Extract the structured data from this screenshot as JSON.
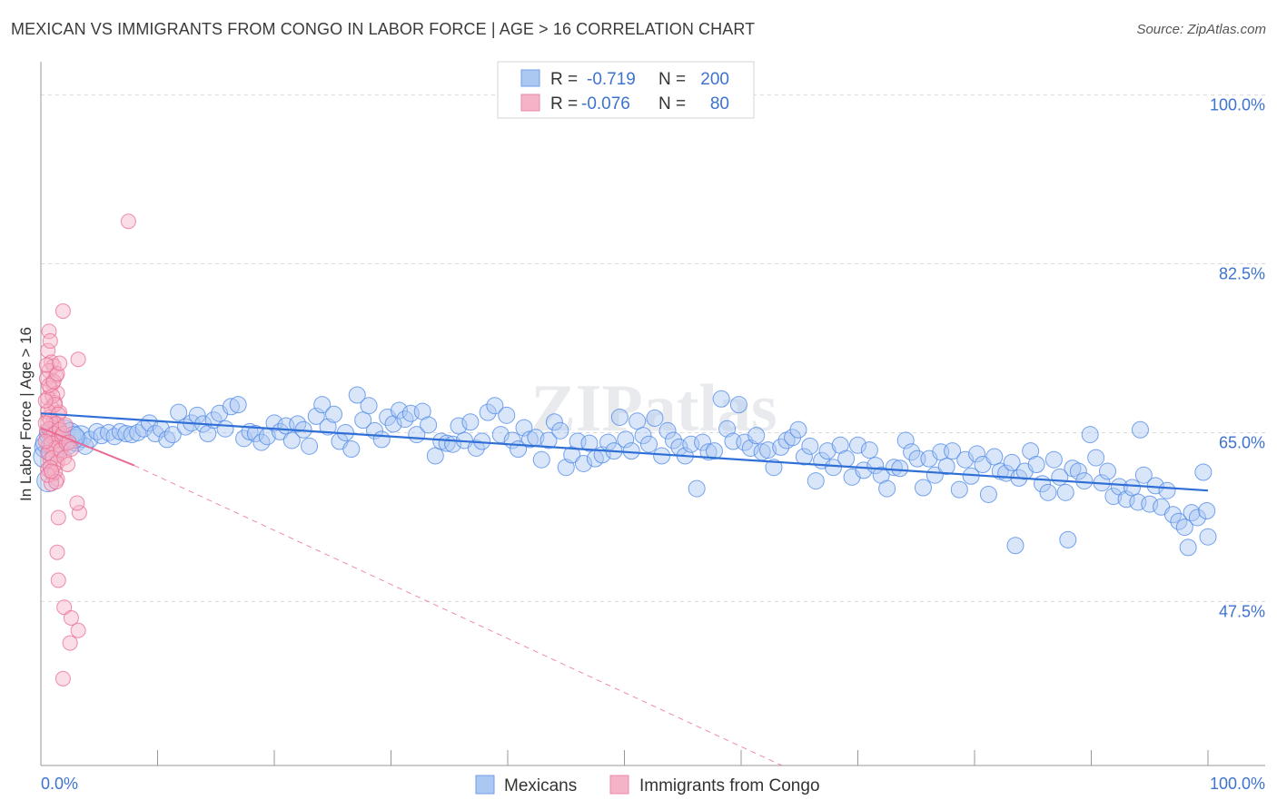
{
  "header": {
    "title": "MEXICAN VS IMMIGRANTS FROM CONGO IN LABOR FORCE | AGE > 16 CORRELATION CHART",
    "source": "Source: ZipAtlas.com"
  },
  "colors": {
    "blue": "#4a86e8",
    "blue_fill": "#aac8f2",
    "blue_line": "#2f6fd6",
    "pink": "#ea6a92",
    "pink_fill": "#f5b3c8",
    "grid": "#d9d9d9",
    "tick_text": "#3d73cf"
  },
  "chart_data": {
    "type": "scatter",
    "title": "MEXICAN VS IMMIGRANTS FROM CONGO IN LABOR FORCE | AGE > 16 CORRELATION CHART",
    "xlabel": "",
    "ylabel": "In Labor Force | Age > 16",
    "xlim": [
      0,
      100
    ],
    "ylim": [
      30.5,
      102.5
    ],
    "y_ticks": [
      47.5,
      65.0,
      82.5,
      100.0
    ],
    "y_tick_labels": [
      "47.5%",
      "65.0%",
      "82.5%",
      "100.0%"
    ],
    "x_tick_labels": [
      "0.0%",
      "100.0%"
    ],
    "watermark": "ZIPatlas",
    "legend_top": [
      {
        "r_label": "R =",
        "r_value": "-0.719",
        "n_label": "N =",
        "n_value": "200"
      },
      {
        "r_label": "R =",
        "r_value": "-0.076",
        "n_label": "N =",
        "n_value": "80"
      }
    ],
    "legend_bottom": [
      "Mexicans",
      "Immigrants from Congo"
    ],
    "series": [
      {
        "name": "Mexicans",
        "trend": {
          "x": [
            0,
            100
          ],
          "y": [
            67.0,
            59.0
          ],
          "style": "solid"
        },
        "points": [
          [
            0.4,
            63.5
          ],
          [
            0.8,
            64.8
          ],
          [
            1.2,
            65.0
          ],
          [
            1.5,
            64.5
          ],
          [
            2.0,
            65.2
          ],
          [
            2.2,
            63.8
          ],
          [
            2.5,
            64.9
          ],
          [
            3.0,
            64.2
          ],
          [
            3.4,
            64.6
          ],
          [
            3.8,
            63.6
          ],
          [
            4.2,
            64.3
          ],
          [
            4.8,
            65.1
          ],
          [
            5.2,
            64.7
          ],
          [
            5.8,
            65.0
          ],
          [
            6.3,
            64.6
          ],
          [
            6.8,
            65.1
          ],
          [
            7.3,
            64.9
          ],
          [
            7.8,
            64.8
          ],
          [
            8.3,
            65.0
          ],
          [
            8.8,
            65.4
          ],
          [
            9.3,
            66.0
          ],
          [
            9.8,
            64.9
          ],
          [
            10.3,
            65.4
          ],
          [
            10.8,
            64.3
          ],
          [
            11.3,
            64.8
          ],
          [
            11.8,
            67.1
          ],
          [
            12.4,
            65.6
          ],
          [
            12.9,
            66.0
          ],
          [
            13.4,
            66.8
          ],
          [
            13.9,
            65.9
          ],
          [
            14.3,
            64.9
          ],
          [
            14.8,
            66.3
          ],
          [
            15.3,
            67.0
          ],
          [
            15.8,
            65.4
          ],
          [
            16.3,
            67.7
          ],
          [
            16.9,
            67.9
          ],
          [
            17.4,
            64.4
          ],
          [
            17.9,
            65.1
          ],
          [
            18.4,
            64.9
          ],
          [
            18.9,
            64.0
          ],
          [
            19.4,
            64.6
          ],
          [
            20.0,
            66.0
          ],
          [
            20.5,
            65.1
          ],
          [
            21.0,
            65.7
          ],
          [
            21.5,
            64.2
          ],
          [
            22.0,
            65.9
          ],
          [
            22.5,
            65.3
          ],
          [
            23.0,
            63.6
          ],
          [
            23.6,
            66.7
          ],
          [
            24.1,
            67.9
          ],
          [
            24.6,
            65.6
          ],
          [
            25.1,
            66.9
          ],
          [
            25.6,
            64.1
          ],
          [
            26.1,
            65.0
          ],
          [
            26.6,
            63.3
          ],
          [
            27.1,
            68.9
          ],
          [
            27.6,
            66.3
          ],
          [
            28.1,
            67.8
          ],
          [
            28.6,
            65.2
          ],
          [
            29.2,
            64.3
          ],
          [
            29.7,
            66.6
          ],
          [
            30.2,
            65.9
          ],
          [
            30.7,
            67.3
          ],
          [
            31.2,
            66.4
          ],
          [
            31.7,
            67.0
          ],
          [
            32.2,
            64.8
          ],
          [
            32.7,
            67.2
          ],
          [
            33.2,
            65.8
          ],
          [
            33.8,
            62.6
          ],
          [
            34.3,
            64.1
          ],
          [
            34.8,
            63.9
          ],
          [
            35.3,
            63.8
          ],
          [
            35.8,
            65.7
          ],
          [
            36.3,
            64.2
          ],
          [
            36.8,
            66.1
          ],
          [
            37.3,
            63.4
          ],
          [
            37.8,
            64.1
          ],
          [
            38.3,
            67.1
          ],
          [
            38.9,
            67.8
          ],
          [
            39.4,
            64.8
          ],
          [
            39.9,
            66.8
          ],
          [
            40.4,
            64.2
          ],
          [
            40.9,
            63.3
          ],
          [
            41.4,
            65.5
          ],
          [
            41.9,
            64.3
          ],
          [
            42.4,
            64.5
          ],
          [
            42.9,
            62.2
          ],
          [
            43.5,
            64.2
          ],
          [
            44.0,
            66.1
          ],
          [
            44.5,
            65.2
          ],
          [
            45.0,
            61.4
          ],
          [
            45.5,
            62.7
          ],
          [
            46.0,
            64.1
          ],
          [
            46.5,
            61.8
          ],
          [
            47.0,
            63.9
          ],
          [
            47.5,
            62.3
          ],
          [
            48.1,
            62.7
          ],
          [
            48.6,
            64.0
          ],
          [
            49.1,
            63.1
          ],
          [
            49.6,
            66.6
          ],
          [
            50.1,
            64.3
          ],
          [
            50.6,
            63.1
          ],
          [
            51.1,
            66.2
          ],
          [
            51.6,
            64.7
          ],
          [
            52.1,
            63.8
          ],
          [
            52.6,
            66.5
          ],
          [
            53.2,
            62.6
          ],
          [
            53.7,
            65.2
          ],
          [
            54.2,
            64.2
          ],
          [
            54.7,
            63.5
          ],
          [
            55.2,
            62.6
          ],
          [
            55.7,
            63.8
          ],
          [
            56.2,
            59.2
          ],
          [
            56.7,
            64.0
          ],
          [
            57.2,
            63.0
          ],
          [
            57.7,
            63.1
          ],
          [
            58.3,
            68.5
          ],
          [
            58.8,
            65.4
          ],
          [
            59.3,
            64.1
          ],
          [
            59.8,
            67.9
          ],
          [
            60.3,
            64.0
          ],
          [
            60.8,
            63.4
          ],
          [
            61.3,
            64.7
          ],
          [
            61.8,
            63.0
          ],
          [
            62.3,
            63.2
          ],
          [
            62.8,
            61.4
          ],
          [
            63.4,
            63.5
          ],
          [
            63.9,
            64.2
          ],
          [
            64.4,
            64.5
          ],
          [
            64.9,
            65.3
          ],
          [
            65.4,
            62.5
          ],
          [
            65.9,
            63.6
          ],
          [
            66.4,
            60.0
          ],
          [
            66.9,
            62.1
          ],
          [
            67.4,
            63.1
          ],
          [
            67.9,
            61.4
          ],
          [
            68.5,
            63.7
          ],
          [
            69.0,
            62.3
          ],
          [
            69.5,
            60.4
          ],
          [
            70.0,
            63.7
          ],
          [
            70.5,
            61.1
          ],
          [
            71.0,
            63.2
          ],
          [
            71.5,
            61.6
          ],
          [
            72.0,
            60.6
          ],
          [
            72.5,
            59.2
          ],
          [
            73.1,
            61.4
          ],
          [
            73.6,
            61.3
          ],
          [
            74.1,
            64.2
          ],
          [
            74.6,
            63.0
          ],
          [
            75.1,
            62.3
          ],
          [
            75.6,
            59.3
          ],
          [
            76.1,
            62.3
          ],
          [
            76.6,
            60.6
          ],
          [
            77.1,
            63.0
          ],
          [
            77.6,
            61.5
          ],
          [
            78.1,
            63.1
          ],
          [
            78.7,
            59.1
          ],
          [
            79.2,
            62.2
          ],
          [
            79.7,
            60.5
          ],
          [
            80.2,
            62.8
          ],
          [
            80.7,
            61.7
          ],
          [
            81.2,
            58.6
          ],
          [
            81.7,
            62.5
          ],
          [
            82.2,
            61.0
          ],
          [
            82.7,
            60.8
          ],
          [
            83.2,
            61.9
          ],
          [
            83.8,
            60.3
          ],
          [
            84.3,
            61.0
          ],
          [
            84.8,
            63.1
          ],
          [
            85.3,
            61.7
          ],
          [
            85.8,
            59.7
          ],
          [
            86.3,
            58.8
          ],
          [
            86.8,
            62.2
          ],
          [
            87.3,
            60.4
          ],
          [
            87.8,
            58.8
          ],
          [
            88.4,
            61.3
          ],
          [
            88.9,
            61.0
          ],
          [
            89.4,
            60.0
          ],
          [
            89.9,
            64.8
          ],
          [
            90.4,
            62.4
          ],
          [
            90.9,
            59.8
          ],
          [
            91.4,
            61.0
          ],
          [
            91.9,
            58.4
          ],
          [
            92.4,
            59.4
          ],
          [
            93.0,
            58.1
          ],
          [
            93.5,
            59.3
          ],
          [
            94.0,
            57.8
          ],
          [
            94.5,
            60.6
          ],
          [
            95.0,
            57.6
          ],
          [
            95.5,
            59.5
          ],
          [
            96.0,
            57.3
          ],
          [
            96.5,
            59.0
          ],
          [
            97.0,
            56.5
          ],
          [
            97.5,
            55.8
          ],
          [
            98.0,
            55.2
          ],
          [
            98.6,
            56.7
          ],
          [
            99.1,
            56.2
          ],
          [
            99.6,
            60.9
          ],
          [
            99.9,
            56.9
          ],
          [
            0.3,
            62.5
          ],
          [
            0.5,
            64.0
          ],
          [
            0.6,
            60.0
          ],
          [
            1.0,
            63.0
          ],
          [
            1.6,
            64.0
          ],
          [
            2.8,
            64.5
          ],
          [
            83.5,
            53.3
          ],
          [
            88.0,
            53.9
          ],
          [
            94.2,
            65.3
          ],
          [
            98.3,
            53.1
          ],
          [
            100.0,
            54.2
          ]
        ]
      },
      {
        "name": "Immigrants from Congo",
        "trend": {
          "x": [
            0,
            8
          ],
          "y": [
            65.5,
            61.6
          ],
          "dashed_to_x": 63.5,
          "dashed_to_y": 30.5
        },
        "points": [
          [
            0.6,
            73.5
          ],
          [
            0.9,
            72.3
          ],
          [
            1.1,
            71.9
          ],
          [
            0.7,
            71.4
          ],
          [
            1.3,
            70.9
          ],
          [
            0.5,
            70.6
          ],
          [
            1.0,
            70.1
          ],
          [
            0.8,
            69.6
          ],
          [
            1.4,
            69.1
          ],
          [
            0.6,
            68.6
          ],
          [
            1.2,
            68.1
          ],
          [
            0.9,
            67.6
          ],
          [
            1.6,
            67.1
          ],
          [
            0.7,
            66.6
          ],
          [
            1.1,
            66.1
          ],
          [
            1.5,
            65.7
          ],
          [
            0.5,
            65.2
          ],
          [
            0.9,
            64.7
          ],
          [
            1.3,
            64.2
          ],
          [
            0.7,
            63.7
          ],
          [
            1.1,
            63.2
          ],
          [
            1.6,
            62.7
          ],
          [
            0.8,
            62.2
          ],
          [
            1.2,
            61.7
          ],
          [
            0.6,
            61.2
          ],
          [
            1.0,
            60.7
          ],
          [
            1.4,
            60.2
          ],
          [
            0.9,
            59.7
          ],
          [
            0.7,
            75.5
          ],
          [
            0.8,
            74.5
          ],
          [
            1.0,
            68.8
          ],
          [
            1.2,
            67.9
          ],
          [
            0.6,
            67.2
          ],
          [
            1.5,
            66.9
          ],
          [
            0.8,
            66.3
          ],
          [
            1.3,
            65.9
          ],
          [
            0.7,
            65.4
          ],
          [
            1.1,
            64.9
          ],
          [
            1.5,
            64.4
          ],
          [
            0.9,
            63.9
          ],
          [
            1.3,
            63.4
          ],
          [
            0.6,
            62.9
          ],
          [
            1.0,
            62.4
          ],
          [
            1.4,
            61.9
          ],
          [
            0.8,
            61.4
          ],
          [
            1.2,
            60.9
          ],
          [
            0.7,
            69.9
          ],
          [
            1.1,
            70.3
          ],
          [
            1.4,
            71.1
          ],
          [
            0.5,
            72.0
          ],
          [
            1.6,
            65.3
          ],
          [
            1.7,
            63.2
          ],
          [
            1.8,
            64.6
          ],
          [
            2.0,
            62.4
          ],
          [
            2.2,
            63.9
          ],
          [
            0.4,
            66.0
          ],
          [
            0.4,
            68.3
          ],
          [
            0.4,
            64.1
          ],
          [
            1.9,
            64.9
          ],
          [
            2.1,
            65.8
          ],
          [
            0.6,
            60.6
          ],
          [
            1.3,
            59.9
          ],
          [
            2.4,
            64.0
          ],
          [
            2.6,
            63.3
          ],
          [
            1.5,
            56.2
          ],
          [
            1.4,
            52.6
          ],
          [
            1.5,
            49.7
          ],
          [
            2.0,
            46.9
          ],
          [
            2.6,
            45.8
          ],
          [
            2.5,
            43.2
          ],
          [
            3.2,
            44.5
          ],
          [
            1.9,
            39.5
          ],
          [
            3.3,
            56.7
          ],
          [
            3.1,
            57.7
          ],
          [
            3.2,
            72.6
          ],
          [
            1.9,
            77.6
          ],
          [
            7.5,
            86.9
          ],
          [
            1.6,
            72.2
          ],
          [
            0.9,
            61.0
          ],
          [
            2.3,
            61.7
          ]
        ]
      }
    ]
  }
}
